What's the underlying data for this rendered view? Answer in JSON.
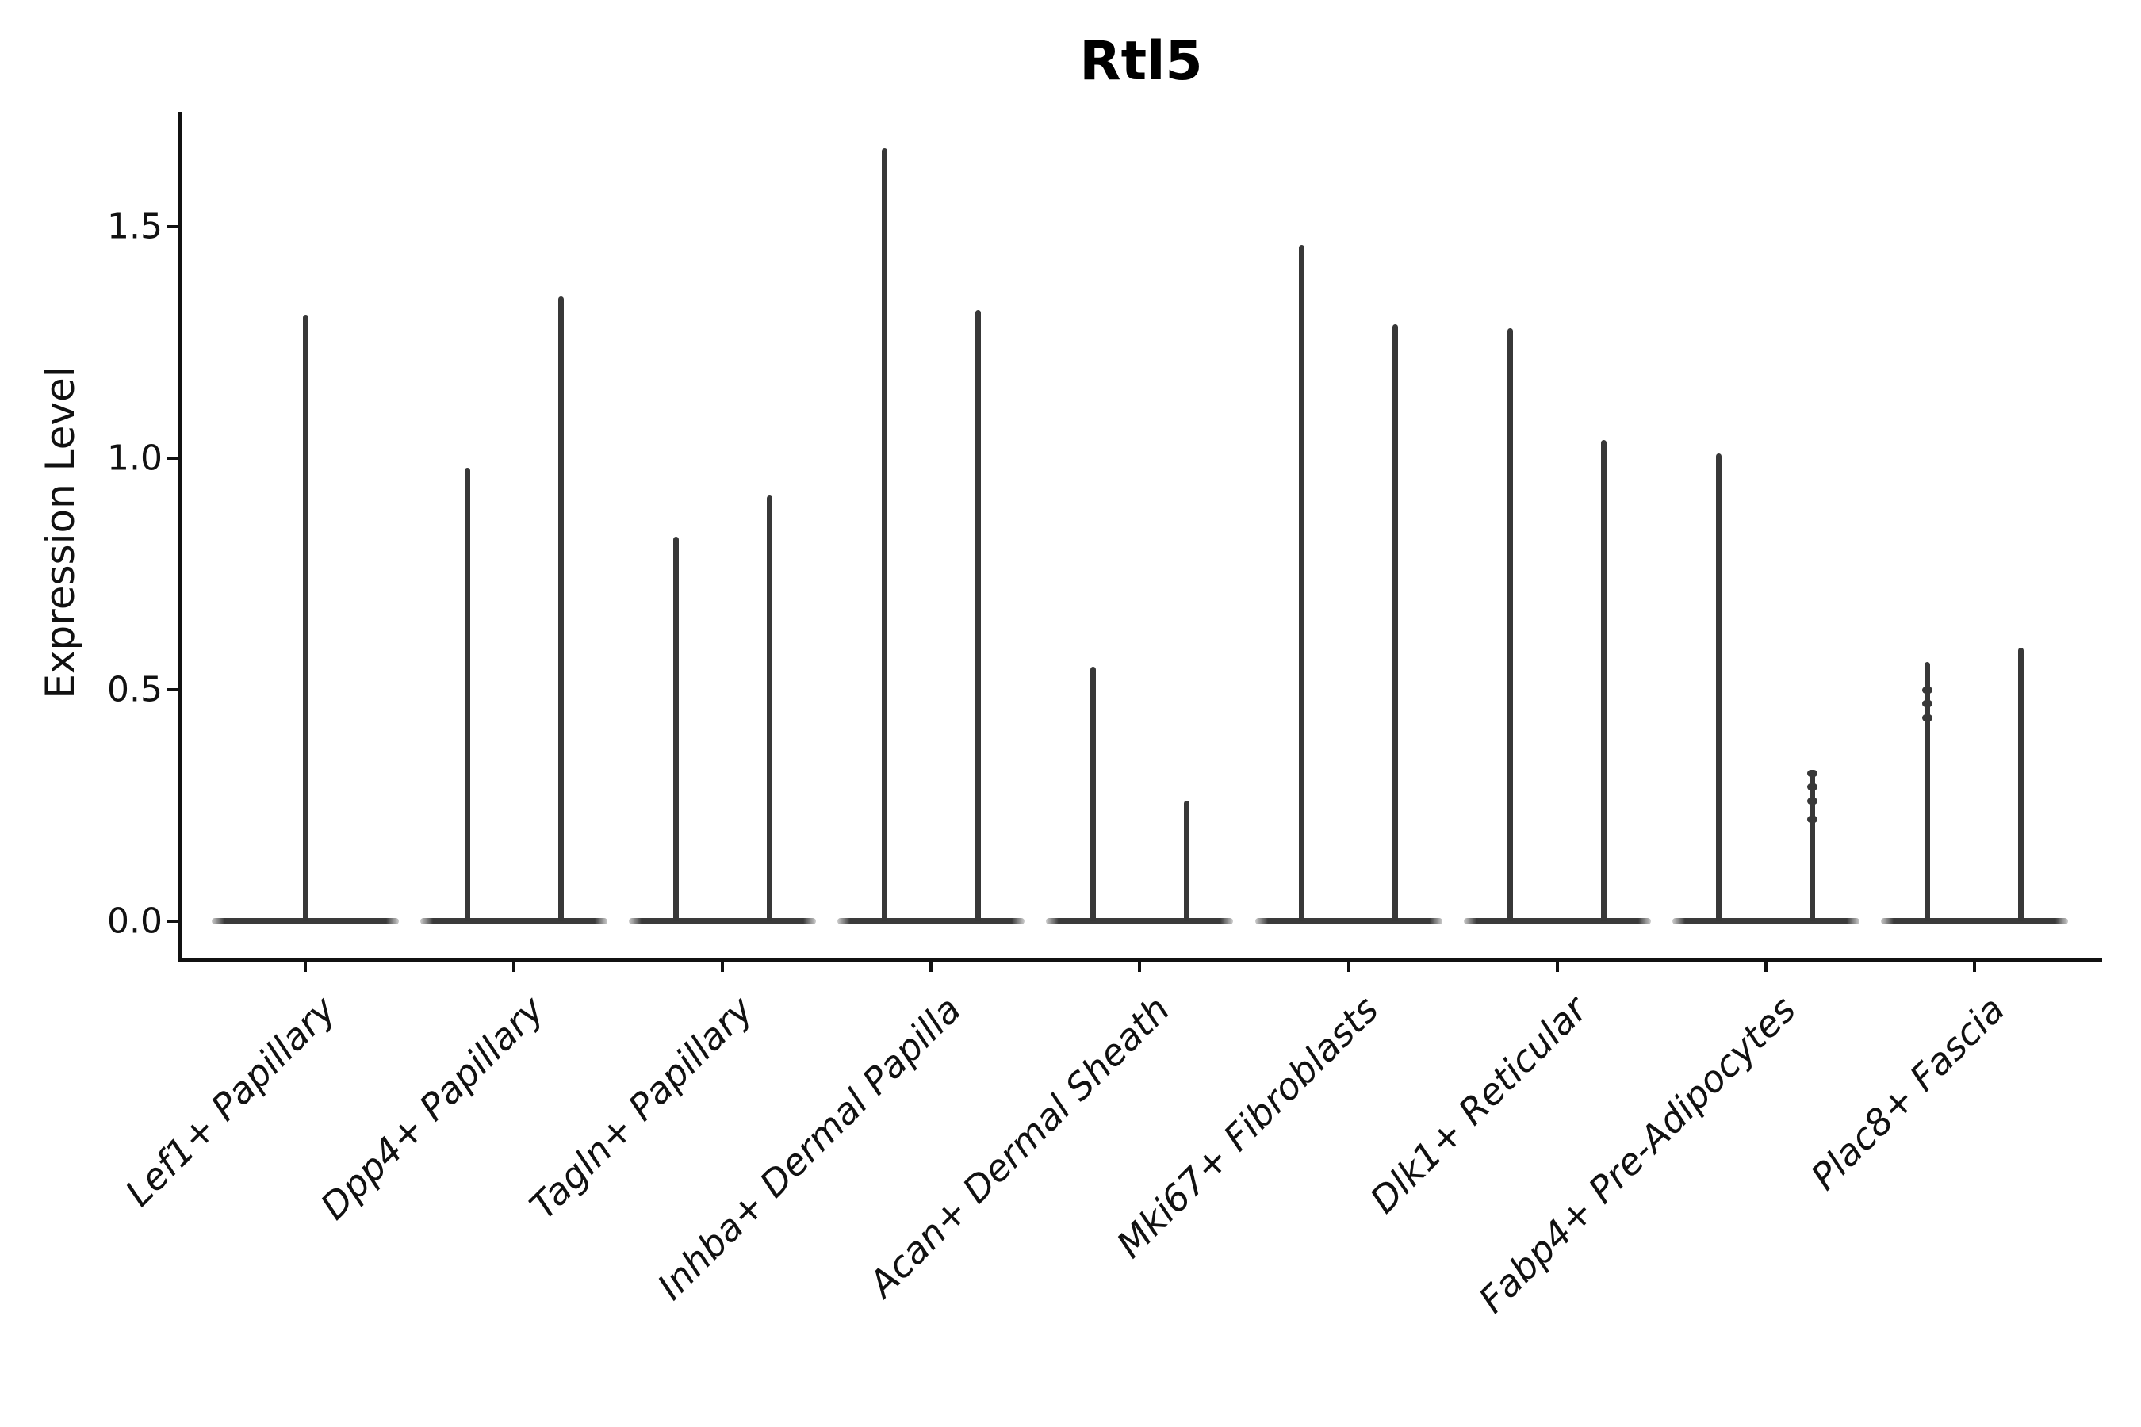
{
  "chart_data": {
    "type": "violin",
    "title": "Rtl5",
    "ylabel": "Expression Level",
    "xlabel": "",
    "ytick_labels": [
      "0.0",
      "0.5",
      "1.0",
      "1.5"
    ],
    "ytick_values": [
      0.0,
      0.5,
      1.0,
      1.5
    ],
    "ylim": [
      -0.08,
      1.74
    ],
    "grid": false,
    "legend": "none",
    "style_note": "Collapsed violins: wide flat base at expression 0 with a needle-thin upper tail reaching the listed peak value; first category has one full-width violin, all others have two half-width (dodged) violins.",
    "categories": [
      "Lef1+ Papillary",
      "Dpp4+ Papillary",
      "Tagln+ Papillary",
      "Inhba+ Dermal Papilla",
      "Acan+ Dermal Sheath",
      "Mki67+ Fibroblasts",
      "Dlk1+ Reticular",
      "Fabp4+ Pre-Adipocytes",
      "Plac8+ Fascia"
    ],
    "groups": [
      {
        "label": "Lef1+ Papillary",
        "violins": [
          {
            "peak": 1.31,
            "bumps": []
          }
        ]
      },
      {
        "label": "Dpp4+ Papillary",
        "violins": [
          {
            "peak": 0.98,
            "bumps": []
          },
          {
            "peak": 1.35,
            "bumps": []
          }
        ]
      },
      {
        "label": "Tagln+ Papillary",
        "violins": [
          {
            "peak": 0.83,
            "bumps": []
          },
          {
            "peak": 0.92,
            "bumps": []
          }
        ]
      },
      {
        "label": "Inhba+ Dermal Papilla",
        "violins": [
          {
            "peak": 1.67,
            "bumps": []
          },
          {
            "peak": 1.32,
            "bumps": []
          }
        ]
      },
      {
        "label": "Acan+ Dermal Sheath",
        "violins": [
          {
            "peak": 0.55,
            "bumps": []
          },
          {
            "peak": 0.26,
            "bumps": []
          }
        ]
      },
      {
        "label": "Mki67+ Fibroblasts",
        "violins": [
          {
            "peak": 1.46,
            "bumps": []
          },
          {
            "peak": 1.29,
            "bumps": []
          }
        ]
      },
      {
        "label": "Dlk1+ Reticular",
        "violins": [
          {
            "peak": 1.28,
            "bumps": []
          },
          {
            "peak": 1.04,
            "bumps": []
          }
        ]
      },
      {
        "label": "Fabp4+ Pre-Adipocytes",
        "violins": [
          {
            "peak": 1.01,
            "bumps": []
          },
          {
            "peak": 0.32,
            "bumps": [
              0.32,
              0.29,
              0.26,
              0.22
            ]
          }
        ]
      },
      {
        "label": "Plac8+ Fascia",
        "violins": [
          {
            "peak": 0.56,
            "bumps": [
              0.5,
              0.47,
              0.44
            ]
          },
          {
            "peak": 0.59,
            "bumps": []
          }
        ]
      }
    ]
  }
}
